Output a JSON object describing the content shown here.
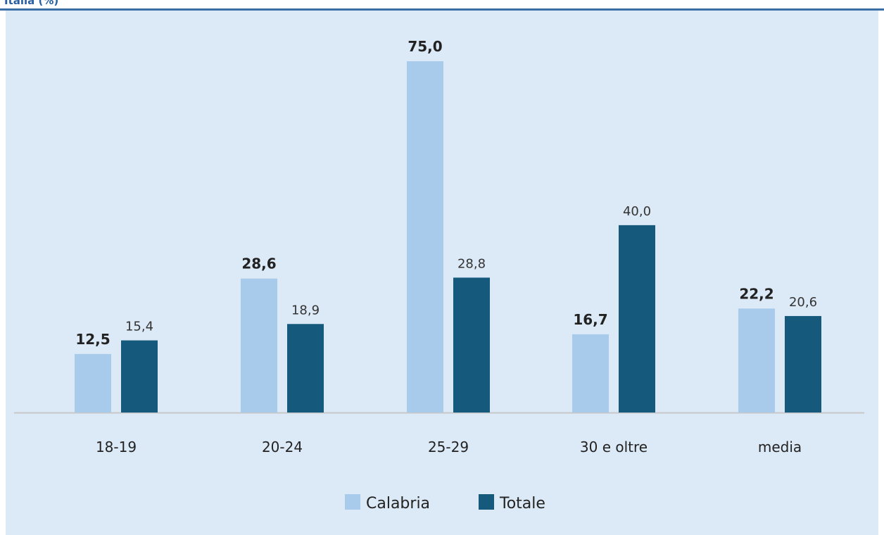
{
  "header": {
    "title_fragment": "Italia (%)"
  },
  "chart_data": {
    "type": "bar",
    "title": "",
    "xlabel": "",
    "ylabel": "",
    "categories": [
      "18-19",
      "20-24",
      "25-29",
      "30 e oltre",
      "media"
    ],
    "series": [
      {
        "name": "Calabria",
        "values": [
          12.5,
          28.6,
          75.0,
          16.7,
          22.2
        ],
        "labels": [
          "12,5",
          "28,6",
          "75,0",
          "16,7",
          "22,2"
        ],
        "color": "#a9cbeb"
      },
      {
        "name": "Totale",
        "values": [
          15.4,
          18.9,
          28.8,
          40.0,
          20.6
        ],
        "labels": [
          "15,4",
          "18,9",
          "28,8",
          "40,0",
          "20,6"
        ],
        "color": "#155a7d"
      }
    ],
    "ylim": [
      0,
      75
    ],
    "grid": false,
    "legend_position": "bottom-center",
    "axis_color": "#c8c8c8"
  }
}
